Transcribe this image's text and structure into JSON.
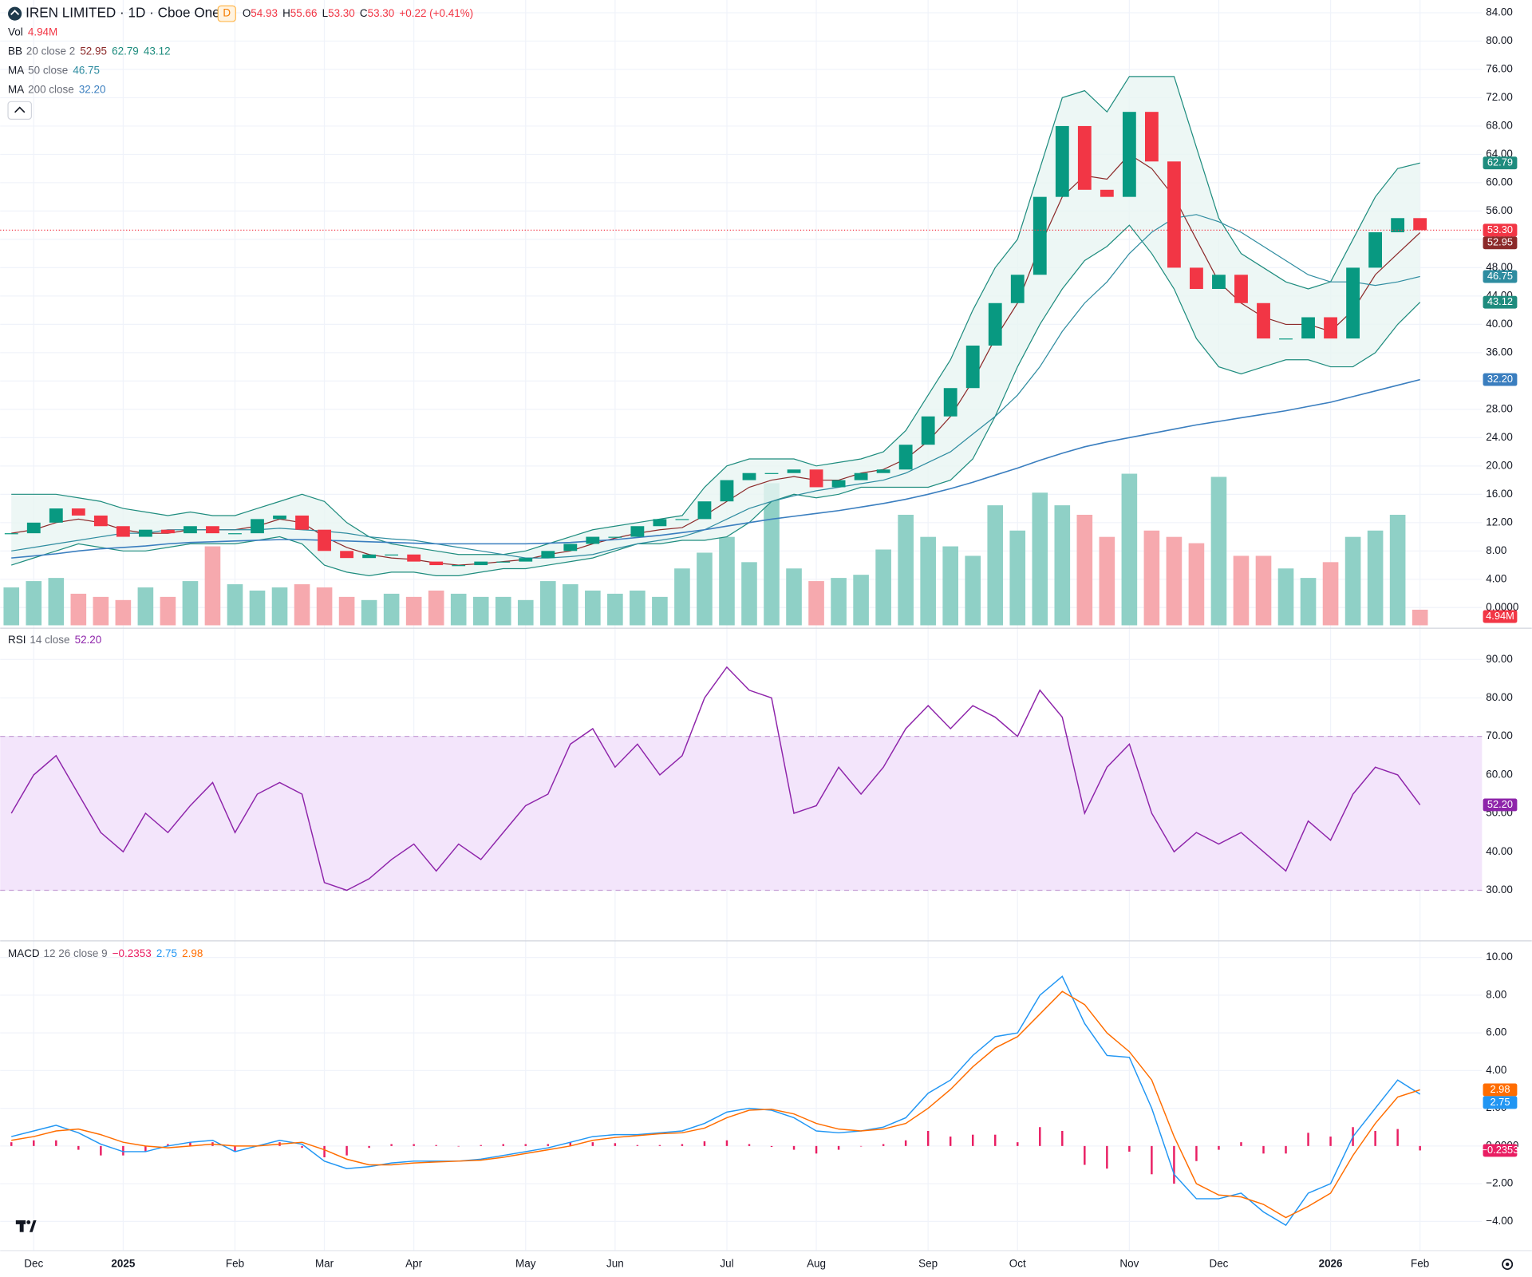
{
  "chart_data": [
    {
      "type": "candlestick",
      "title": "IREN LIMITED · 1D · Cboe One",
      "interval_badge": "D",
      "ohlc_labels": [
        "O",
        "H",
        "L",
        "C"
      ],
      "ohlc_values": [
        "54.93",
        "55.66",
        "53.30",
        "53.30"
      ],
      "change": "+0.22 (+0.41%)",
      "legends": [
        {
          "name": "Vol",
          "values": [
            "4.94M"
          ],
          "colors": [
            "#f23645"
          ]
        },
        {
          "name": "BB",
          "params": "20 close 2",
          "values": [
            "52.95",
            "62.79",
            "43.12"
          ],
          "colors": [
            "#8c2a2a",
            "#1e8c7e",
            "#1e8c7e"
          ]
        },
        {
          "name": "MA",
          "params": "50 close",
          "values": [
            "46.75"
          ],
          "colors": [
            "#2e8ca0"
          ]
        },
        {
          "name": "MA",
          "params": "200 close",
          "values": [
            "32.20"
          ],
          "colors": [
            "#3a7ebf"
          ]
        }
      ],
      "categories": [
        null,
        "Dec",
        null,
        null,
        null,
        "2025",
        null,
        null,
        null,
        null,
        "Feb",
        null,
        null,
        null,
        "Mar",
        null,
        null,
        null,
        "Apr",
        null,
        null,
        null,
        null,
        "May",
        null,
        null,
        null,
        "Jun",
        null,
        null,
        null,
        null,
        "Jul",
        null,
        null,
        null,
        "Aug",
        null,
        null,
        null,
        null,
        "Sep",
        null,
        null,
        null,
        "Oct",
        null,
        null,
        null,
        null,
        "Nov",
        null,
        null,
        null,
        "Dec",
        null,
        null,
        null,
        null,
        "2026",
        null,
        null,
        null,
        "Feb"
      ],
      "close": [
        10.5,
        12,
        14,
        13,
        11.5,
        10,
        11,
        10.5,
        11.5,
        10.5,
        10.5,
        12.5,
        13,
        11,
        8,
        7,
        7.5,
        7.5,
        6.5,
        6,
        6,
        6.5,
        6.5,
        7,
        8,
        9,
        10,
        10,
        11.5,
        12.5,
        12.5,
        15,
        18,
        19,
        19,
        19.5,
        17,
        18,
        19,
        19.5,
        23,
        27,
        31,
        37,
        43,
        47,
        58,
        68,
        59,
        58,
        70,
        63,
        48,
        45,
        47,
        43,
        38,
        38,
        41,
        38,
        48,
        53,
        55,
        53.3
      ],
      "up_color": "#089981",
      "down_color": "#f23645",
      "bb": {
        "color": "#1e8c7e",
        "basis_color": "#8c2a2a",
        "fill": "#e8f5f2",
        "upper": [
          16,
          16,
          16,
          15.5,
          15,
          14,
          13.5,
          13,
          13.5,
          13,
          13,
          14,
          15,
          16,
          15,
          12,
          10,
          9,
          8.5,
          8,
          7.5,
          7.5,
          7.5,
          8,
          9,
          10,
          11,
          11.5,
          12,
          12.5,
          13,
          17,
          20,
          21,
          21,
          21,
          20,
          20.5,
          21,
          22,
          25,
          30,
          35,
          42,
          48,
          52,
          62,
          72,
          73,
          70,
          75,
          75,
          75,
          65,
          55,
          50,
          48,
          46,
          45,
          46,
          52,
          58,
          62,
          62.79
        ],
        "basis": [
          10.5,
          11,
          12,
          12.5,
          12,
          11,
          10.5,
          10.5,
          11,
          11,
          11,
          11.5,
          12.5,
          12,
          10,
          8.5,
          7.5,
          7,
          6.8,
          6.3,
          6,
          6.2,
          6.5,
          6.8,
          7.5,
          8,
          9,
          9.8,
          10.5,
          11,
          11.3,
          13,
          15,
          17,
          18,
          18.5,
          18,
          18,
          19,
          19.5,
          21,
          23.5,
          27,
          32,
          38,
          43,
          51,
          58,
          61,
          60.5,
          64,
          62,
          58,
          52,
          46,
          43,
          41,
          40,
          40,
          39,
          42,
          47,
          50,
          52.95
        ],
        "lower": [
          6,
          7,
          8,
          9,
          8.5,
          8,
          8,
          8.5,
          9,
          9,
          9,
          9.5,
          10,
          9,
          6,
          5,
          4.5,
          5,
          5,
          4.5,
          4.5,
          5,
          5.5,
          5.5,
          6,
          6.5,
          7,
          8,
          9,
          9,
          9.5,
          9.5,
          10,
          12,
          15,
          16,
          15.5,
          16,
          17,
          17,
          17,
          17,
          18,
          21,
          27,
          34,
          40,
          45,
          49,
          51,
          54,
          50,
          45,
          38,
          34,
          33,
          34,
          35,
          35,
          34,
          34,
          36,
          40,
          43.12
        ]
      },
      "ma50": {
        "color": "#2e8ca0",
        "values": [
          8,
          8.5,
          9,
          9.5,
          10,
          10.5,
          10.5,
          11,
          11,
          11,
          11,
          11,
          11.2,
          11,
          10.8,
          10.5,
          10,
          9.7,
          9.5,
          9,
          8.5,
          8,
          7.5,
          7,
          7,
          7.2,
          7.5,
          8.3,
          9,
          9.5,
          10,
          11,
          12.5,
          14,
          15,
          15.8,
          16.5,
          17,
          17.5,
          18,
          19,
          20.5,
          22,
          24.5,
          27,
          30,
          34,
          39,
          43,
          46,
          50,
          53,
          55,
          55.5,
          54.5,
          53,
          51,
          49,
          47,
          46,
          46,
          45.5,
          46,
          46.75
        ]
      },
      "ma200": {
        "color": "#3a7ebf",
        "values": [
          7,
          7.3,
          7.6,
          8,
          8.3,
          8.5,
          8.7,
          9,
          9.2,
          9.3,
          9.4,
          9.5,
          9.6,
          9.6,
          9.5,
          9.4,
          9.3,
          9.2,
          9.1,
          9,
          9,
          9,
          9,
          9,
          9.1,
          9.2,
          9.4,
          9.6,
          9.9,
          10.2,
          10.6,
          11,
          11.5,
          12,
          12.5,
          12.9,
          13.3,
          13.7,
          14.2,
          14.7,
          15.3,
          16,
          16.8,
          17.7,
          18.7,
          19.7,
          20.8,
          21.8,
          22.7,
          23.4,
          24,
          24.6,
          25.2,
          25.8,
          26.3,
          26.8,
          27.3,
          27.8,
          28.4,
          29,
          29.8,
          30.6,
          31.4,
          32.2
        ]
      },
      "volume": {
        "ylim": [
          0,
          198
        ],
        "up_color": "#8fd0c6",
        "down_color": "#f6a9ae",
        "values": [
          12,
          14,
          15,
          10,
          9,
          8,
          12,
          9,
          14,
          25,
          13,
          11,
          12,
          13,
          12,
          9,
          8,
          10,
          9,
          11,
          10,
          9,
          9,
          8,
          14,
          13,
          11,
          10,
          11,
          9,
          18,
          23,
          28,
          20,
          45,
          18,
          14,
          15,
          16,
          24,
          35,
          28,
          25,
          22,
          38,
          30,
          42,
          38,
          35,
          28,
          48,
          30,
          28,
          26,
          47,
          22,
          22,
          18,
          15,
          20,
          28,
          30,
          35,
          4.94
        ]
      },
      "ylim": [
        -2.5,
        85.8
      ],
      "yticks": [
        {
          "value": 0,
          "label": "0.0000"
        },
        {
          "value": 4,
          "label": "4.00"
        },
        {
          "value": 8,
          "label": "8.00"
        },
        {
          "value": 12,
          "label": "12.00"
        },
        {
          "value": 16,
          "label": "16.00"
        },
        {
          "value": 20,
          "label": "20.00"
        },
        {
          "value": 24,
          "label": "24.00"
        },
        {
          "value": 28,
          "label": "28.00"
        },
        {
          "value": 32,
          "label": "32.00"
        },
        {
          "value": 36,
          "label": "36.00"
        },
        {
          "value": 40,
          "label": "40.00"
        },
        {
          "value": 44,
          "label": "44.00"
        },
        {
          "value": 48,
          "label": "48.00"
        },
        {
          "value": 52,
          "label": "52.00"
        },
        {
          "value": 56,
          "label": "56.00"
        },
        {
          "value": 60,
          "label": "60.00"
        },
        {
          "value": 64,
          "label": "64.00"
        },
        {
          "value": 68,
          "label": "68.00"
        },
        {
          "value": 72,
          "label": "72.00"
        },
        {
          "value": 76,
          "label": "76.00"
        },
        {
          "value": 80,
          "label": "80.00"
        },
        {
          "value": 84,
          "label": "84.00"
        }
      ],
      "grid": true
    },
    {
      "type": "rsi",
      "legend": {
        "name": "RSI",
        "params": "14 close",
        "values": [
          "52.20"
        ],
        "colors": [
          "#8e24aa"
        ]
      },
      "color": "#8e24aa",
      "band": [
        30,
        70
      ],
      "band_color": "#f3e5fb",
      "values": [
        50,
        60,
        65,
        55,
        45,
        40,
        50,
        45,
        52,
        58,
        45,
        55,
        58,
        55,
        32,
        30,
        33,
        38,
        42,
        35,
        42,
        38,
        45,
        52,
        55,
        68,
        72,
        62,
        68,
        60,
        65,
        80,
        88,
        82,
        80,
        50,
        52,
        62,
        55,
        62,
        72,
        78,
        72,
        78,
        75,
        70,
        82,
        75,
        50,
        62,
        68,
        50,
        40,
        45,
        42,
        45,
        40,
        35,
        48,
        43,
        55,
        62,
        60,
        52.2
      ],
      "ylim": [
        17.1,
        97.6
      ],
      "yticks": [
        {
          "value": 30,
          "label": "30.00"
        },
        {
          "value": 40,
          "label": "40.00"
        },
        {
          "value": 50,
          "label": "50.00"
        },
        {
          "value": 60,
          "label": "60.00"
        },
        {
          "value": 70,
          "label": "70.00"
        },
        {
          "value": 80,
          "label": "80.00"
        },
        {
          "value": 90,
          "label": "90.00"
        }
      ],
      "grid": true
    },
    {
      "type": "macd",
      "legend": {
        "name": "MACD",
        "params": "12 26 close 9",
        "values": [
          "−0.2353",
          "2.75",
          "2.98"
        ],
        "colors": [
          "#e91e63",
          "#2196f3",
          "#ff6d00"
        ]
      },
      "macd": {
        "color": "#2196f3",
        "values": [
          0.5,
          0.8,
          1.1,
          0.7,
          0.1,
          -0.3,
          -0.3,
          0,
          0.2,
          0.3,
          -0.3,
          0,
          0.3,
          0.1,
          -0.8,
          -1.2,
          -1.1,
          -0.9,
          -0.8,
          -0.8,
          -0.8,
          -0.7,
          -0.5,
          -0.3,
          -0.1,
          0.2,
          0.5,
          0.6,
          0.6,
          0.7,
          0.8,
          1.2,
          1.8,
          2,
          1.9,
          1.5,
          0.8,
          0.7,
          0.8,
          1,
          1.5,
          2.8,
          3.5,
          4.8,
          5.8,
          6,
          8,
          9,
          6.5,
          4.8,
          4.7,
          2,
          -1.5,
          -2.8,
          -2.8,
          -2.5,
          -3.5,
          -4.2,
          -2.5,
          -2,
          0.5,
          2,
          3.5,
          2.75
        ]
      },
      "signal": {
        "color": "#ff6d00",
        "values": [
          0.3,
          0.5,
          0.8,
          0.9,
          0.6,
          0.2,
          0,
          -0.1,
          0,
          0.1,
          0,
          0,
          0.1,
          0.2,
          -0.2,
          -0.7,
          -1,
          -1,
          -0.9,
          -0.85,
          -0.8,
          -0.75,
          -0.6,
          -0.4,
          -0.2,
          0,
          0.3,
          0.45,
          0.55,
          0.65,
          0.7,
          0.95,
          1.5,
          1.9,
          1.95,
          1.7,
          1.2,
          0.9,
          0.8,
          0.9,
          1.2,
          2,
          3,
          4.2,
          5.2,
          5.8,
          7,
          8.2,
          7.5,
          6,
          5,
          3.5,
          0.5,
          -2,
          -2.6,
          -2.7,
          -3.1,
          -3.8,
          -3.2,
          -2.5,
          -0.5,
          1.2,
          2.6,
          2.98
        ]
      },
      "histogram": {
        "color": "#e91e63",
        "values": [
          0.2,
          0.3,
          0.3,
          -0.2,
          -0.5,
          -0.5,
          -0.3,
          0.1,
          0.2,
          0.2,
          -0.3,
          0,
          0.2,
          -0.1,
          -0.6,
          -0.5,
          -0.1,
          0.1,
          0.1,
          0.05,
          0,
          0.05,
          0.1,
          0.1,
          0.1,
          0.2,
          0.2,
          0.15,
          0.05,
          0.05,
          0.1,
          0.25,
          0.3,
          0.1,
          -0.05,
          -0.2,
          -0.4,
          -0.2,
          0,
          0.1,
          0.3,
          0.8,
          0.5,
          0.6,
          0.6,
          0.2,
          1,
          0.8,
          -1,
          -1.2,
          -0.3,
          -1.5,
          -2,
          -0.8,
          -0.2,
          0.2,
          -0.4,
          -0.4,
          0.7,
          0.5,
          1,
          0.8,
          0.9,
          -0.2353
        ]
      },
      "ylim": [
        -5.55,
        10.88
      ],
      "yticks": [
        {
          "value": -4,
          "label": "−4.00"
        },
        {
          "value": -2,
          "label": "−2.00"
        },
        {
          "value": 0,
          "label": "0.0000"
        },
        {
          "value": 2,
          "label": "2.00"
        },
        {
          "value": 4,
          "label": "4.00"
        },
        {
          "value": 6,
          "label": "6.00"
        },
        {
          "value": 8,
          "label": "8.00"
        },
        {
          "value": 10,
          "label": "10.00"
        }
      ],
      "grid": true
    }
  ]
}
